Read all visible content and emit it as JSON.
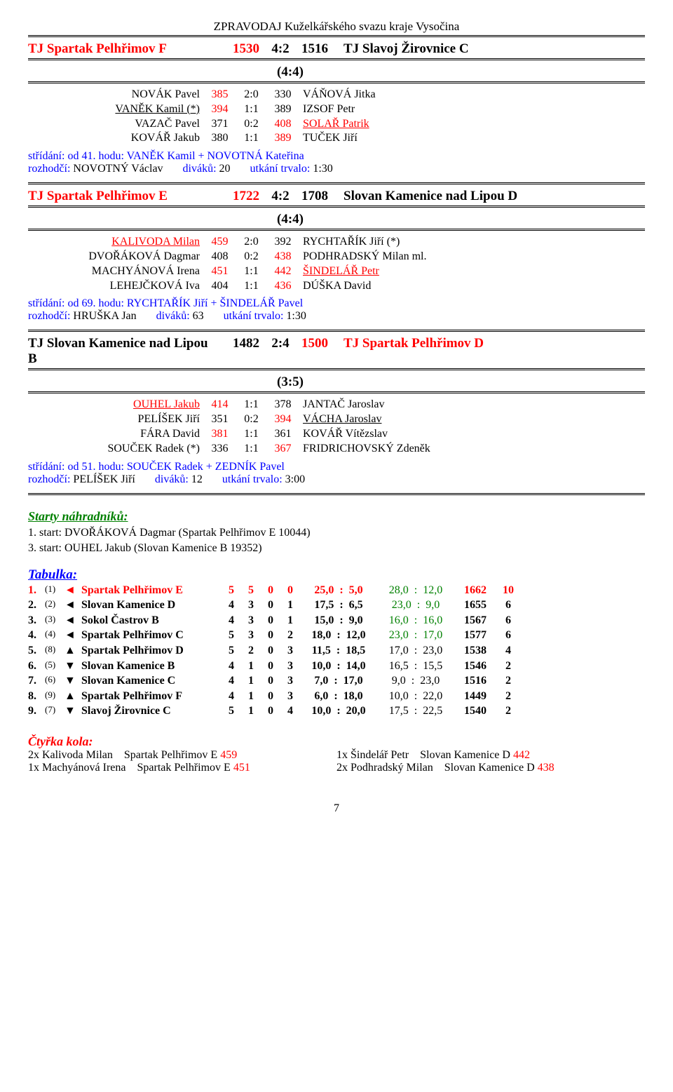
{
  "header": "ZPRAVODAJ Kuželkářského svazu kraje Vysočina",
  "matches": [
    {
      "teamL": "TJ Spartak Pelhřimov F",
      "sL": "1530",
      "mid": "4:2",
      "sR": "1516",
      "teamR": "TJ Slavoj Žirovnice C",
      "teamL_red": true,
      "teamR_red": false,
      "sub": "(4:4)",
      "players": [
        {
          "l": "NOVÁK Pavel",
          "lred": false,
          "lul": false,
          "s1": "385",
          "s2": "2:0",
          "s3": "330",
          "r": "VÁŇOVÁ Jitka",
          "rred": false,
          "rul": false,
          "s1red": true,
          "s3red": false
        },
        {
          "l": "VANĚK Kamil (*)",
          "lred": false,
          "lul": true,
          "s1": "394",
          "s2": "1:1",
          "s3": "389",
          "r": "IZSOF Petr",
          "rred": false,
          "rul": false,
          "s1red": true,
          "s3red": false
        },
        {
          "l": "VAZAČ Pavel",
          "lred": false,
          "lul": false,
          "s1": "371",
          "s2": "0:2",
          "s3": "408",
          "r": "SOLAŘ Patrik",
          "rred": true,
          "rul": true,
          "s1red": false,
          "s3red": true
        },
        {
          "l": "KOVÁŘ Jakub",
          "lred": false,
          "lul": false,
          "s1": "380",
          "s2": "1:1",
          "s3": "389",
          "r": "TUČEK Jiří",
          "rred": false,
          "rul": false,
          "s1red": false,
          "s3red": true
        }
      ],
      "note1": "střídání: od 41. hodu: VANĚK Kamil + NOVOTNÁ Kateřina",
      "note2_a": "rozhodčí:",
      "note2_b": " NOVOTNÝ Václav",
      "note2_c": "diváků:",
      "note2_d": " 20",
      "note2_e": "utkání trvalo:",
      "note2_f": " 1:30"
    },
    {
      "teamL": "TJ Spartak Pelhřimov E",
      "sL": "1722",
      "mid": "4:2",
      "sR": "1708",
      "teamR": "Slovan Kamenice nad Lipou D",
      "teamL_red": true,
      "teamR_red": false,
      "sub": "(4:4)",
      "players": [
        {
          "l": "KALIVODA Milan",
          "lred": true,
          "lul": true,
          "s1": "459",
          "s2": "2:0",
          "s3": "392",
          "r": "RYCHTAŘÍK Jiří (*)",
          "rred": false,
          "rul": false,
          "s1red": true,
          "s3red": false
        },
        {
          "l": "DVOŘÁKOVÁ Dagmar",
          "lred": false,
          "lul": false,
          "s1": "408",
          "s2": "0:2",
          "s3": "438",
          "r": "PODHRADSKÝ Milan ml.",
          "rred": false,
          "rul": false,
          "s1red": false,
          "s3red": true
        },
        {
          "l": "MACHYÁNOVÁ Irena",
          "lred": false,
          "lul": false,
          "s1": "451",
          "s2": "1:1",
          "s3": "442",
          "r": "ŠINDELÁŘ Petr",
          "rred": true,
          "rul": true,
          "s1red": true,
          "s3red": true
        },
        {
          "l": "LEHEJČKOVÁ Iva",
          "lred": false,
          "lul": false,
          "s1": "404",
          "s2": "1:1",
          "s3": "436",
          "r": "DÚŠKA David",
          "rred": false,
          "rul": false,
          "s1red": false,
          "s3red": true
        }
      ],
      "note1": "střídání: od 69. hodu: RYCHTAŘÍK Jiří + ŠINDELÁŘ Pavel",
      "note2_a": "rozhodčí:",
      "note2_b": " HRUŠKA Jan",
      "note2_c": "diváků:",
      "note2_d": " 63",
      "note2_e": "utkání trvalo:",
      "note2_f": " 1:30"
    },
    {
      "teamL": "TJ Slovan Kamenice nad Lipou B",
      "sL": "1482",
      "mid": "2:4",
      "sR": "1500",
      "teamR": "TJ Spartak Pelhřimov D",
      "teamL_red": false,
      "teamR_red": true,
      "sub": "(3:5)",
      "players": [
        {
          "l": "OUHEL Jakub",
          "lred": true,
          "lul": true,
          "s1": "414",
          "s2": "1:1",
          "s3": "378",
          "r": "JANTAČ Jaroslav",
          "rred": false,
          "rul": false,
          "s1red": true,
          "s3red": false
        },
        {
          "l": "PELÍŠEK Jiří",
          "lred": false,
          "lul": false,
          "s1": "351",
          "s2": "0:2",
          "s3": "394",
          "r": "VÁCHA Jaroslav",
          "rred": false,
          "rul": true,
          "s1red": false,
          "s3red": true
        },
        {
          "l": "FÁRA David",
          "lred": false,
          "lul": false,
          "s1": "381",
          "s2": "1:1",
          "s3": "361",
          "r": "KOVÁŘ Vítězslav",
          "rred": false,
          "rul": false,
          "s1red": true,
          "s3red": false
        },
        {
          "l": "SOUČEK Radek (*)",
          "lred": false,
          "lul": false,
          "s1": "336",
          "s2": "1:1",
          "s3": "367",
          "r": "FRIDRICHOVSKÝ Zdeněk",
          "rred": false,
          "rul": false,
          "s1red": false,
          "s3red": true
        }
      ],
      "note1": "střídání: od 51. hodu: SOUČEK Radek + ZEDNÍK Pavel",
      "note2_a": "rozhodčí:",
      "note2_b": " PELÍŠEK Jiří",
      "note2_c": "diváků:",
      "note2_d": " 12",
      "note2_e": "utkání trvalo:",
      "note2_f": " 3:00"
    }
  ],
  "starts_title": "Starty náhradníků:",
  "starts": [
    "1. start: DVOŘÁKOVÁ Dagmar (Spartak Pelhřimov E  10044)",
    "3. start: OUHEL Jakub (Slovan Kamenice B  19352)"
  ],
  "tabulka_title": "Tabulka:",
  "standings": [
    {
      "pos": "1.",
      "prev": "(1)",
      "arr": "◄",
      "team": "Spartak Pelhřimov E",
      "g": "5",
      "w": "5",
      "d": "0",
      "l": "0",
      "ra": "25,0",
      "rb": "5,0",
      "sa": "28,0",
      "sb": "12,0",
      "avg": "1662",
      "pts": "10",
      "red": true,
      "gr": true
    },
    {
      "pos": "2.",
      "prev": "(2)",
      "arr": "◄",
      "team": "Slovan Kamenice D",
      "g": "4",
      "w": "3",
      "d": "0",
      "l": "1",
      "ra": "17,5",
      "rb": "6,5",
      "sa": "23,0",
      "sb": "9,0",
      "avg": "1655",
      "pts": "6",
      "red": false,
      "gr": true
    },
    {
      "pos": "3.",
      "prev": "(3)",
      "arr": "◄",
      "team": "Sokol Častrov B",
      "g": "4",
      "w": "3",
      "d": "0",
      "l": "1",
      "ra": "15,0",
      "rb": "9,0",
      "sa": "16,0",
      "sb": "16,0",
      "avg": "1567",
      "pts": "6",
      "red": false,
      "gr": true
    },
    {
      "pos": "4.",
      "prev": "(4)",
      "arr": "◄",
      "team": "Spartak Pelhřimov C",
      "g": "5",
      "w": "3",
      "d": "0",
      "l": "2",
      "ra": "18,0",
      "rb": "12,0",
      "sa": "23,0",
      "sb": "17,0",
      "avg": "1577",
      "pts": "6",
      "red": false,
      "gr": true
    },
    {
      "pos": "5.",
      "prev": "(8)",
      "arr": "▲",
      "team": "Spartak Pelhřimov D",
      "g": "5",
      "w": "2",
      "d": "0",
      "l": "3",
      "ra": "11,5",
      "rb": "18,5",
      "sa": "17,0",
      "sb": "23,0",
      "avg": "1538",
      "pts": "4",
      "red": false,
      "gr": false
    },
    {
      "pos": "6.",
      "prev": "(5)",
      "arr": "▼",
      "team": "Slovan Kamenice B",
      "g": "4",
      "w": "1",
      "d": "0",
      "l": "3",
      "ra": "10,0",
      "rb": "14,0",
      "sa": "16,5",
      "sb": "15,5",
      "avg": "1546",
      "pts": "2",
      "red": false,
      "gr": false
    },
    {
      "pos": "7.",
      "prev": "(6)",
      "arr": "▼",
      "team": "Slovan Kamenice C",
      "g": "4",
      "w": "1",
      "d": "0",
      "l": "3",
      "ra": "7,0",
      "rb": "17,0",
      "sa": "9,0",
      "sb": "23,0",
      "avg": "1516",
      "pts": "2",
      "red": false,
      "gr": false
    },
    {
      "pos": "8.",
      "prev": "(9)",
      "arr": "▲",
      "team": "Spartak Pelhřimov F",
      "g": "4",
      "w": "1",
      "d": "0",
      "l": "3",
      "ra": "6,0",
      "rb": "18,0",
      "sa": "10,0",
      "sb": "22,0",
      "avg": "1449",
      "pts": "2",
      "red": false,
      "gr": false
    },
    {
      "pos": "9.",
      "prev": "(7)",
      "arr": "▼",
      "team": "Slavoj Žirovnice C",
      "g": "5",
      "w": "1",
      "d": "0",
      "l": "4",
      "ra": "10,0",
      "rb": "20,0",
      "sa": "17,5",
      "sb": "22,5",
      "avg": "1540",
      "pts": "2",
      "red": false,
      "gr": false
    }
  ],
  "ctyrka_title": "Čtyřka kola:",
  "ctyrka": [
    {
      "l_pre": "2x  Kalivoda Milan",
      "l_team": "Spartak Pelhřimov E",
      "l_val": "459",
      "r_pre": "1x  Šindelář Petr",
      "r_team": "Slovan Kamenice D",
      "r_val": "442"
    },
    {
      "l_pre": "1x  Machyánová Irena",
      "l_team": "Spartak Pelhřimov E",
      "l_val": "451",
      "r_pre": "2x  Podhradský Milan",
      "r_team": "Slovan Kamenice D",
      "r_val": "438"
    }
  ],
  "page": "7"
}
